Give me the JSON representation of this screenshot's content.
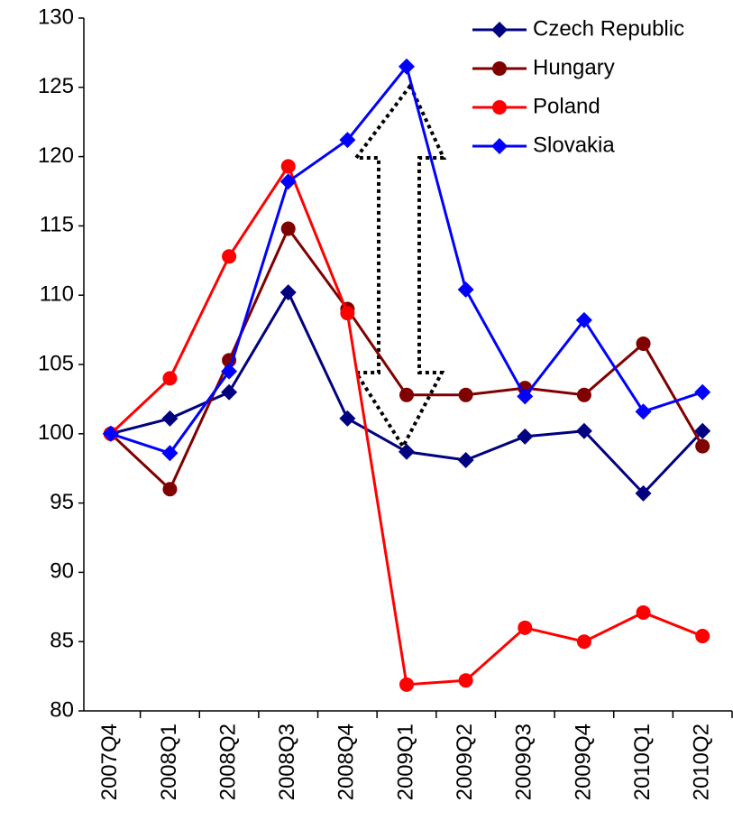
{
  "chart_data": {
    "type": "line",
    "categories": [
      "2007Q4",
      "2008Q1",
      "2008Q2",
      "2008Q3",
      "2008Q4",
      "2009Q1",
      "2009Q2",
      "2009Q3",
      "2009Q4",
      "2010Q1",
      "2010Q2"
    ],
    "series": [
      {
        "name": "Czech Republic",
        "color": "#000080",
        "marker": "diamond",
        "values": [
          100,
          101.1,
          103,
          110.2,
          101.1,
          98.7,
          98.1,
          99.8,
          100.2,
          95.7,
          100.2
        ]
      },
      {
        "name": "Hungary",
        "color": "#800000",
        "marker": "circle",
        "values": [
          100,
          96,
          105.3,
          114.8,
          109,
          102.8,
          102.8,
          103.3,
          102.8,
          106.5,
          99.1
        ]
      },
      {
        "name": "Poland",
        "color": "#ff0000",
        "marker": "circle",
        "values": [
          100,
          104,
          112.8,
          119.3,
          108.7,
          81.9,
          82.2,
          86,
          85,
          87.1,
          85.4
        ]
      },
      {
        "name": "Slovakia",
        "color": "#0000ff",
        "marker": "diamond",
        "values": [
          100,
          98.6,
          104.5,
          118.2,
          121.2,
          126.5,
          110.4,
          102.7,
          108.2,
          101.6,
          103
        ]
      }
    ],
    "ylim": [
      80,
      130
    ],
    "yticks": [
      80,
      85,
      90,
      95,
      100,
      105,
      110,
      115,
      120,
      125,
      130
    ],
    "legend": "top-right"
  }
}
